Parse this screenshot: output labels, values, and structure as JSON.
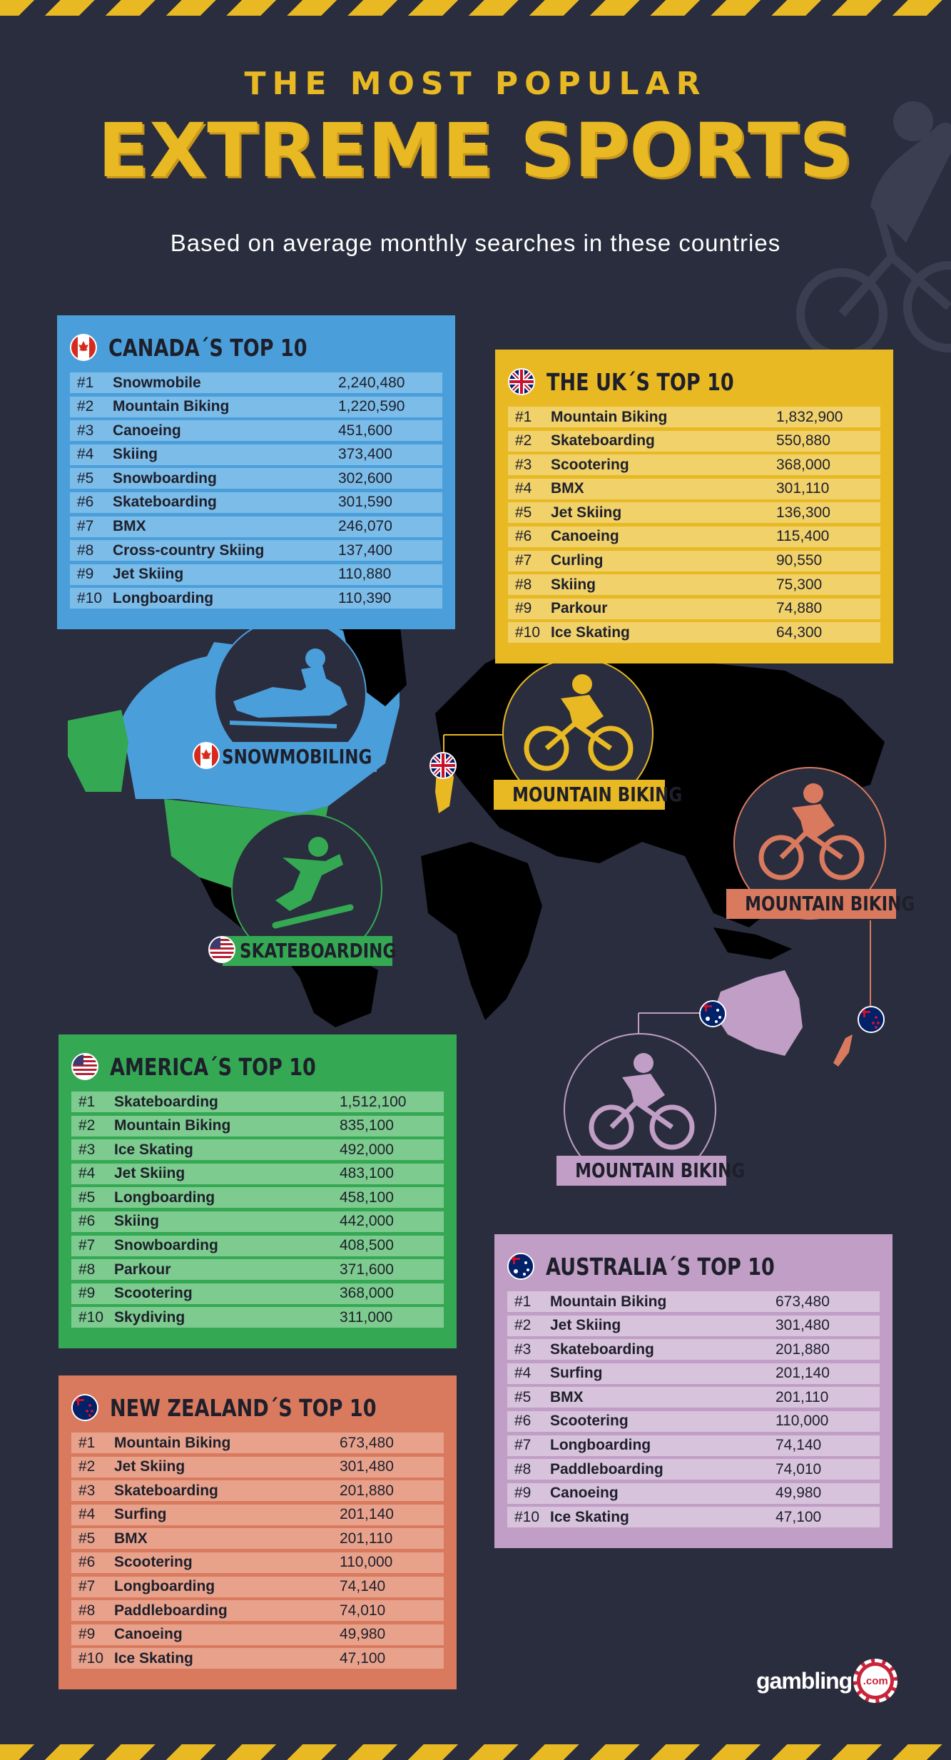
{
  "header": {
    "title_line1": "THE MOST POPULAR",
    "title_line2": "EXTREME SPORTS",
    "subtitle": "Based on average monthly searches in these countries"
  },
  "colors": {
    "background": "#2a2d3d",
    "accent_yellow": "#e8b923",
    "canada_blue": "#4a9fdb",
    "uk_yellow": "#e8b923",
    "usa_green": "#34a853",
    "nz_orange": "#d97a5e",
    "australia_purple": "#c09ec5"
  },
  "panels": {
    "canada": {
      "title": "CANADA´S TOP 10",
      "rows": [
        {
          "rank": "#1",
          "sport": "Snowmobile",
          "value": "2,240,480"
        },
        {
          "rank": "#2",
          "sport": "Mountain Biking",
          "value": "1,220,590"
        },
        {
          "rank": "#3",
          "sport": "Canoeing",
          "value": "451,600"
        },
        {
          "rank": "#4",
          "sport": "Skiing",
          "value": "373,400"
        },
        {
          "rank": "#5",
          "sport": "Snowboarding",
          "value": "302,600"
        },
        {
          "rank": "#6",
          "sport": "Skateboarding",
          "value": "301,590"
        },
        {
          "rank": "#7",
          "sport": "BMX",
          "value": "246,070"
        },
        {
          "rank": "#8",
          "sport": "Cross-country Skiing",
          "value": "137,400"
        },
        {
          "rank": "#9",
          "sport": "Jet Skiing",
          "value": "110,880"
        },
        {
          "rank": "#10",
          "sport": "Longboarding",
          "value": "110,390"
        }
      ]
    },
    "uk": {
      "title": "THE UK´S TOP 10",
      "rows": [
        {
          "rank": "#1",
          "sport": "Mountain Biking",
          "value": "1,832,900"
        },
        {
          "rank": "#2",
          "sport": "Skateboarding",
          "value": "550,880"
        },
        {
          "rank": "#3",
          "sport": "Scootering",
          "value": "368,000"
        },
        {
          "rank": "#4",
          "sport": "BMX",
          "value": "301,110"
        },
        {
          "rank": "#5",
          "sport": "Jet Skiing",
          "value": "136,300"
        },
        {
          "rank": "#6",
          "sport": "Canoeing",
          "value": "115,400"
        },
        {
          "rank": "#7",
          "sport": "Curling",
          "value": "90,550"
        },
        {
          "rank": "#8",
          "sport": "Skiing",
          "value": "75,300"
        },
        {
          "rank": "#9",
          "sport": "Parkour",
          "value": "74,880"
        },
        {
          "rank": "#10",
          "sport": "Ice Skating",
          "value": "64,300"
        }
      ]
    },
    "usa": {
      "title": "AMERICA´S TOP 10",
      "rows": [
        {
          "rank": "#1",
          "sport": "Skateboarding",
          "value": "1,512,100"
        },
        {
          "rank": "#2",
          "sport": "Mountain Biking",
          "value": "835,100"
        },
        {
          "rank": "#3",
          "sport": "Ice Skating",
          "value": "492,000"
        },
        {
          "rank": "#4",
          "sport": "Jet Skiing",
          "value": "483,100"
        },
        {
          "rank": "#5",
          "sport": "Longboarding",
          "value": "458,100"
        },
        {
          "rank": "#6",
          "sport": "Skiing",
          "value": "442,000"
        },
        {
          "rank": "#7",
          "sport": "Snowboarding",
          "value": "408,500"
        },
        {
          "rank": "#8",
          "sport": "Parkour",
          "value": "371,600"
        },
        {
          "rank": "#9",
          "sport": "Scootering",
          "value": "368,000"
        },
        {
          "rank": "#10",
          "sport": "Skydiving",
          "value": "311,000"
        }
      ]
    },
    "australia": {
      "title": "AUSTRALIA´S TOP 10",
      "rows": [
        {
          "rank": "#1",
          "sport": "Mountain Biking",
          "value": "673,480"
        },
        {
          "rank": "#2",
          "sport": "Jet Skiing",
          "value": "301,480"
        },
        {
          "rank": "#3",
          "sport": "Skateboarding",
          "value": "201,880"
        },
        {
          "rank": "#4",
          "sport": "Surfing",
          "value": "201,140"
        },
        {
          "rank": "#5",
          "sport": "BMX",
          "value": "201,110"
        },
        {
          "rank": "#6",
          "sport": "Scootering",
          "value": "110,000"
        },
        {
          "rank": "#7",
          "sport": "Longboarding",
          "value": "74,140"
        },
        {
          "rank": "#8",
          "sport": "Paddleboarding",
          "value": "74,010"
        },
        {
          "rank": "#9",
          "sport": "Canoeing",
          "value": "49,980"
        },
        {
          "rank": "#10",
          "sport": "Ice Skating",
          "value": "47,100"
        }
      ]
    },
    "nz": {
      "title": "NEW ZEALAND´S TOP 10",
      "rows": [
        {
          "rank": "#1",
          "sport": "Mountain Biking",
          "value": "673,480"
        },
        {
          "rank": "#2",
          "sport": "Jet Skiing",
          "value": "301,480"
        },
        {
          "rank": "#3",
          "sport": "Skateboarding",
          "value": "201,880"
        },
        {
          "rank": "#4",
          "sport": "Surfing",
          "value": "201,140"
        },
        {
          "rank": "#5",
          "sport": "BMX",
          "value": "201,110"
        },
        {
          "rank": "#6",
          "sport": "Scootering",
          "value": "110,000"
        },
        {
          "rank": "#7",
          "sport": "Longboarding",
          "value": "74,140"
        },
        {
          "rank": "#8",
          "sport": "Paddleboarding",
          "value": "74,010"
        },
        {
          "rank": "#9",
          "sport": "Canoeing",
          "value": "49,980"
        },
        {
          "rank": "#10",
          "sport": "Ice Skating",
          "value": "47,100"
        }
      ]
    }
  },
  "map_badges": {
    "canada": "SNOWMOBILING",
    "usa": "SKATEBOARDING",
    "uk": "MOUNTAIN BIKING",
    "nz": "MOUNTAIN BIKING",
    "australia": "MOUNTAIN BIKING"
  },
  "logo": {
    "text": "gambling",
    "suffix": ".com"
  }
}
